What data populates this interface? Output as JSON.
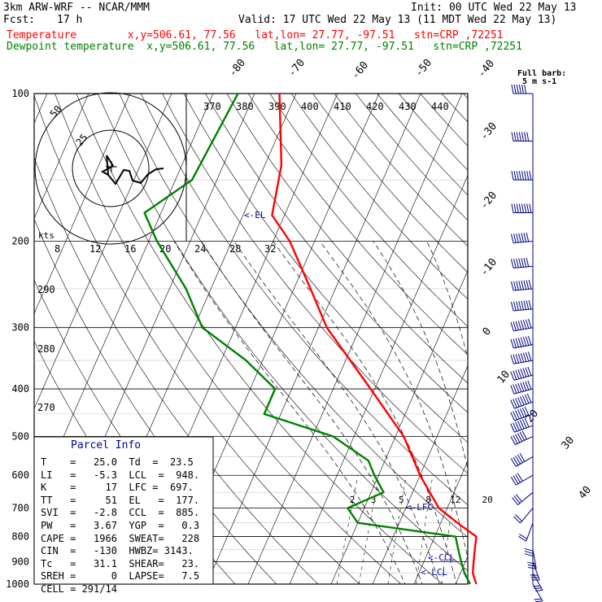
{
  "header": {
    "model": "3km ARW-WRF -- NCAR/MMM",
    "init": "Init: 00 UTC Wed 22 May 13",
    "fcst_label": "Fcst:",
    "fcst_value": "17 h",
    "valid": "Valid: 17 UTC Wed 22 May 13 (11 MDT Wed 22 May 13)",
    "line_temp": "Temperature        x,y=506.61, 77.56   lat,lon= 27.77, -97.51   stn=CRP ,72251",
    "line_dew": "Dewpoint temperature  x,y=506.61, 77.56   lat,lon= 27.77, -97.51   stn=CRP ,72251"
  },
  "barb_legend": {
    "line1": "Full barb:",
    "line2": "5 m s-1"
  },
  "parcel_info": {
    "title": "Parcel Info",
    "rows": [
      "T    =   25.0  Td  =  23.5",
      "LI   =   -5.3  LCL  =  948.",
      "K    =     17  LFC =  697.",
      "TT   =     51  EL   =  177.",
      "SVI  =   -2.8  CCL  =  885.",
      "PW   =   3.67  YGP  =   0.3",
      "CAPE =   1966  SWEAT=   228",
      "CIN  =   -130  HWBZ= 3143.",
      "Tc   =   31.1  SHEAR=   23.",
      "SREH =      0  LAPSE=   7.5",
      "CELL = 291/14"
    ]
  },
  "chart_data": {
    "type": "line",
    "title": "Skew-T log-P diagram",
    "pressure_levels": [
      100,
      200,
      300,
      400,
      500,
      600,
      700,
      800,
      900,
      1000
    ],
    "isotherm_labels": [
      -80,
      -70,
      -60,
      -50,
      -40,
      -30,
      -20,
      -10,
      0,
      10,
      20,
      30,
      40
    ],
    "theta_labels": [
      370,
      380,
      390,
      400,
      410,
      420,
      430,
      440
    ],
    "dry_adiabat_labels": [
      290,
      280,
      270
    ],
    "mixing_ratio_labels": [
      "2",
      "3",
      "5",
      "8",
      "12",
      "20"
    ],
    "hodograph": {
      "units": "kts",
      "ring_labels": [
        "25",
        "50"
      ],
      "speed_axis": [
        "8",
        "12",
        "16",
        "20",
        "24",
        "28",
        "32"
      ]
    },
    "annotations": [
      "<-EL",
      "<-LFC",
      "<-CCL",
      "<-LCL"
    ],
    "series": [
      {
        "name": "Temperature",
        "color": "#ff0000",
        "points": [
          [
            100,
            -74
          ],
          [
            140,
            -66
          ],
          [
            177,
            -63
          ],
          [
            200,
            -56
          ],
          [
            250,
            -46
          ],
          [
            300,
            -38
          ],
          [
            400,
            -21
          ],
          [
            500,
            -8
          ],
          [
            600,
            0
          ],
          [
            700,
            8
          ],
          [
            750,
            14
          ],
          [
            800,
            20
          ],
          [
            850,
            21
          ],
          [
            900,
            22
          ],
          [
            950,
            23
          ],
          [
            1000,
            25
          ]
        ]
      },
      {
        "name": "Dewpoint temperature",
        "color": "#008000",
        "points": [
          [
            100,
            -84
          ],
          [
            150,
            -86
          ],
          [
            175,
            -94
          ],
          [
            200,
            -88
          ],
          [
            250,
            -76
          ],
          [
            300,
            -68
          ],
          [
            350,
            -54
          ],
          [
            400,
            -44
          ],
          [
            450,
            -44
          ],
          [
            500,
            -25
          ],
          [
            560,
            -14
          ],
          [
            600,
            -11
          ],
          [
            650,
            -7
          ],
          [
            700,
            -14
          ],
          [
            750,
            -10
          ],
          [
            800,
            15
          ],
          [
            850,
            17
          ],
          [
            900,
            19
          ],
          [
            950,
            21
          ],
          [
            1000,
            23.5
          ]
        ]
      }
    ],
    "wind_profile": [
      [
        100,
        270,
        30
      ],
      [
        125,
        270,
        35
      ],
      [
        150,
        270,
        40
      ],
      [
        175,
        270,
        40
      ],
      [
        200,
        265,
        35
      ],
      [
        225,
        265,
        35
      ],
      [
        250,
        265,
        40
      ],
      [
        275,
        265,
        40
      ],
      [
        300,
        260,
        40
      ],
      [
        325,
        260,
        40
      ],
      [
        350,
        260,
        45
      ],
      [
        375,
        255,
        40
      ],
      [
        400,
        255,
        40
      ],
      [
        425,
        250,
        40
      ],
      [
        450,
        250,
        35
      ],
      [
        475,
        250,
        35
      ],
      [
        500,
        245,
        30
      ],
      [
        550,
        240,
        25
      ],
      [
        600,
        240,
        20
      ],
      [
        650,
        230,
        15
      ],
      [
        700,
        220,
        10
      ],
      [
        750,
        200,
        10
      ],
      [
        800,
        180,
        15
      ],
      [
        850,
        170,
        15
      ],
      [
        900,
        160,
        15
      ],
      [
        950,
        150,
        15
      ],
      [
        1000,
        150,
        10
      ]
    ]
  }
}
